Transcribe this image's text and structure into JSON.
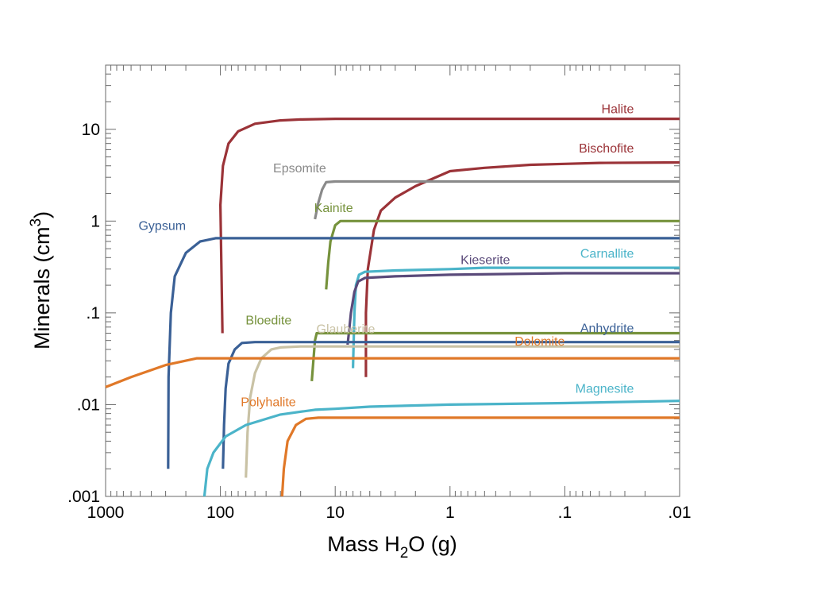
{
  "chart_data": {
    "type": "line",
    "title": "",
    "xlabel": {
      "prefix": "Mass H",
      "sub": "2",
      "suffix": "O (g)"
    },
    "ylabel": {
      "prefix": "Minerals (cm",
      "sup": "3",
      "suffix": ")"
    },
    "xscale": "log",
    "yscale": "log",
    "x_reversed": true,
    "xlim": [
      1000,
      0.01
    ],
    "ylim": [
      0.001,
      50
    ],
    "grid": false,
    "legend": "inline labels",
    "x_ticks": [
      {
        "value": 1000,
        "label": "1000"
      },
      {
        "value": 100,
        "label": "100"
      },
      {
        "value": 10,
        "label": "10"
      },
      {
        "value": 1,
        "label": "1"
      },
      {
        "value": 0.1,
        "label": ".1"
      },
      {
        "value": 0.01,
        "label": ".01"
      }
    ],
    "y_ticks": [
      {
        "value": 0.001,
        "label": ".001"
      },
      {
        "value": 0.01,
        "label": ".01"
      },
      {
        "value": 0.1,
        "label": ".1"
      },
      {
        "value": 1,
        "label": "1"
      },
      {
        "value": 10,
        "label": "10"
      }
    ],
    "series": [
      {
        "name": "Halite",
        "color": "#9b3338",
        "label_at": [
          0.025,
          15
        ],
        "points": [
          [
            96,
            0.06
          ],
          [
            98,
            0.3
          ],
          [
            100,
            1.5
          ],
          [
            95,
            4
          ],
          [
            85,
            7
          ],
          [
            70,
            9.5
          ],
          [
            50,
            11.5
          ],
          [
            30,
            12.5
          ],
          [
            20,
            12.8
          ],
          [
            10,
            13
          ],
          [
            1,
            13
          ],
          [
            0.1,
            13
          ],
          [
            0.01,
            13
          ]
        ]
      },
      {
        "name": "Bischofite",
        "color": "#9b3338",
        "label_at": [
          0.025,
          5.6
        ],
        "points": [
          [
            5.4,
            0.02
          ],
          [
            5.4,
            0.1
          ],
          [
            5.2,
            0.3
          ],
          [
            4.6,
            0.8
          ],
          [
            4,
            1.3
          ],
          [
            3,
            1.8
          ],
          [
            2,
            2.4
          ],
          [
            1,
            3.5
          ],
          [
            0.5,
            3.8
          ],
          [
            0.2,
            4.1
          ],
          [
            0.1,
            4.2
          ],
          [
            0.05,
            4.3
          ],
          [
            0.01,
            4.35
          ]
        ]
      },
      {
        "name": "Epsomite",
        "color": "#8a8a8a",
        "label_at": [
          12,
          3.4
        ],
        "points": [
          [
            15,
            1.05
          ],
          [
            14,
            1.6
          ],
          [
            13,
            2.2
          ],
          [
            12.3,
            2.5
          ],
          [
            12,
            2.65
          ],
          [
            10,
            2.7
          ],
          [
            1,
            2.7
          ],
          [
            0.1,
            2.7
          ],
          [
            0.01,
            2.7
          ]
        ]
      },
      {
        "name": "Kainite",
        "color": "#76923c",
        "label_at": [
          7,
          1.25
        ],
        "points": [
          [
            12,
            0.18
          ],
          [
            11.5,
            0.35
          ],
          [
            11,
            0.6
          ],
          [
            10,
            0.9
          ],
          [
            9,
            1
          ],
          [
            5,
            1
          ],
          [
            1,
            1
          ],
          [
            0.1,
            1
          ],
          [
            0.01,
            1
          ]
        ]
      },
      {
        "name": "Gypsum",
        "color": "#3a6096",
        "label_at": [
          200,
          0.8
        ],
        "points": [
          [
            285,
            0.002
          ],
          [
            283,
            0.02
          ],
          [
            270,
            0.1
          ],
          [
            250,
            0.25
          ],
          [
            200,
            0.45
          ],
          [
            150,
            0.6
          ],
          [
            110,
            0.65
          ],
          [
            100,
            0.65
          ],
          [
            10,
            0.65
          ],
          [
            1,
            0.65
          ],
          [
            0.1,
            0.65
          ],
          [
            0.01,
            0.65
          ]
        ]
      },
      {
        "name": "Carnallite",
        "color": "#4bb4c9",
        "label_at": [
          0.025,
          0.4
        ],
        "points": [
          [
            7,
            0.025
          ],
          [
            6.9,
            0.05
          ],
          [
            6.8,
            0.1
          ],
          [
            6.6,
            0.2
          ],
          [
            6.2,
            0.26
          ],
          [
            5.5,
            0.28
          ],
          [
            3,
            0.29
          ],
          [
            1,
            0.3
          ],
          [
            0.5,
            0.31
          ],
          [
            0.1,
            0.31
          ],
          [
            0.01,
            0.31
          ]
        ]
      },
      {
        "name": "Kieserite",
        "color": "#5a4a7a",
        "label_at": [
          0.3,
          0.34
        ],
        "points": [
          [
            7.8,
            0.045
          ],
          [
            7.6,
            0.06
          ],
          [
            7.3,
            0.1
          ],
          [
            6.8,
            0.17
          ],
          [
            6.3,
            0.22
          ],
          [
            5.5,
            0.24
          ],
          [
            3,
            0.25
          ],
          [
            1,
            0.26
          ],
          [
            0.1,
            0.27
          ],
          [
            0.01,
            0.27
          ]
        ]
      },
      {
        "name": "Bloedite",
        "color": "#76923c",
        "label_at": [
          24,
          0.075
        ],
        "points": [
          [
            16,
            0.018
          ],
          [
            15.5,
            0.03
          ],
          [
            15,
            0.05
          ],
          [
            14.5,
            0.06
          ],
          [
            10,
            0.06
          ],
          [
            1,
            0.06
          ],
          [
            0.1,
            0.06
          ],
          [
            0.01,
            0.06
          ]
        ]
      },
      {
        "name": "Glauberite",
        "color": "#c9c2a5",
        "label_at": [
          4.5,
          0.06
        ],
        "points": [
          [
            60,
            0.0016
          ],
          [
            58,
            0.005
          ],
          [
            55,
            0.012
          ],
          [
            50,
            0.022
          ],
          [
            44,
            0.032
          ],
          [
            36,
            0.04
          ],
          [
            30,
            0.042
          ],
          [
            20,
            0.043
          ],
          [
            10,
            0.043
          ],
          [
            1,
            0.043
          ],
          [
            0.1,
            0.043
          ],
          [
            0.01,
            0.043
          ]
        ]
      },
      {
        "name": "Anhydrite",
        "color": "#3a6096",
        "label_at": [
          0.025,
          0.061
        ],
        "points": [
          [
            95,
            0.002
          ],
          [
            93,
            0.006
          ],
          [
            90,
            0.015
          ],
          [
            85,
            0.028
          ],
          [
            75,
            0.04
          ],
          [
            65,
            0.047
          ],
          [
            50,
            0.048
          ],
          [
            10,
            0.048
          ],
          [
            1,
            0.048
          ],
          [
            0.1,
            0.048
          ],
          [
            0.01,
            0.048
          ]
        ]
      },
      {
        "name": "Dolomite",
        "color": "#e07828",
        "label_at": [
          0.1,
          0.044
        ],
        "points": [
          [
            1000,
            0.0155
          ],
          [
            600,
            0.02
          ],
          [
            300,
            0.027
          ],
          [
            160,
            0.032
          ],
          [
            100,
            0.032
          ],
          [
            10,
            0.032
          ],
          [
            1,
            0.032
          ],
          [
            0.1,
            0.032
          ],
          [
            0.01,
            0.032
          ]
        ]
      },
      {
        "name": "Magnesite",
        "color": "#4bb4c9",
        "label_at": [
          0.025,
          0.0135
        ],
        "points": [
          [
            138,
            0.001
          ],
          [
            130,
            0.002
          ],
          [
            115,
            0.003
          ],
          [
            90,
            0.0045
          ],
          [
            60,
            0.006
          ],
          [
            30,
            0.0078
          ],
          [
            15,
            0.0088
          ],
          [
            10,
            0.009
          ],
          [
            5,
            0.0095
          ],
          [
            1,
            0.01
          ],
          [
            0.1,
            0.0104
          ],
          [
            0.01,
            0.011
          ]
        ]
      },
      {
        "name": "Polyhalite",
        "color": "#e07828",
        "label_at": [
          22,
          0.0096
        ],
        "points": [
          [
            29,
            0.001
          ],
          [
            28,
            0.002
          ],
          [
            26,
            0.004
          ],
          [
            22,
            0.006
          ],
          [
            18,
            0.007
          ],
          [
            14,
            0.0072
          ],
          [
            10,
            0.0072
          ],
          [
            1,
            0.0072
          ],
          [
            0.1,
            0.0072
          ],
          [
            0.01,
            0.0072
          ]
        ]
      }
    ]
  }
}
